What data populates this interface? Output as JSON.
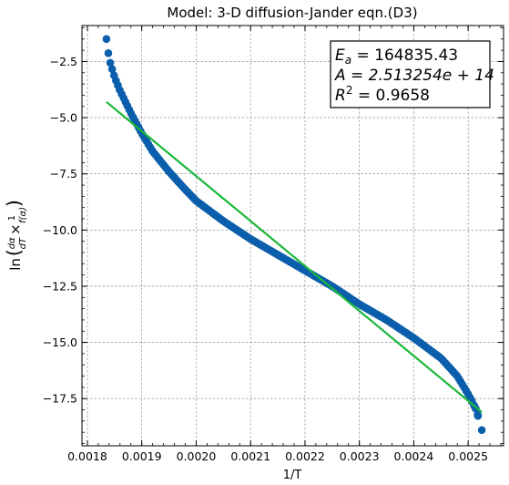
{
  "chart_data": {
    "type": "scatter",
    "title": "Model: 3-D diffusion-Jander eqn.(D3)",
    "xlabel": "1/T",
    "ylabel": "ln(dα/dT × 1/f(α))",
    "xlim": [
      0.00179,
      0.002565
    ],
    "ylim": [
      -19.6,
      -0.9
    ],
    "xticks": [
      0.0018,
      0.0019,
      0.002,
      0.0021,
      0.0022,
      0.0023,
      0.0024,
      0.0025
    ],
    "xtick_labels": [
      "0.0018",
      "0.0019",
      "0.0020",
      "0.0021",
      "0.0022",
      "0.0023",
      "0.0024",
      "0.0025"
    ],
    "yticks": [
      -2.5,
      -5.0,
      -7.5,
      -10.0,
      -12.5,
      -15.0,
      -17.5
    ],
    "ytick_labels": [
      "−2.5",
      "−5.0",
      "−7.5",
      "−10.0",
      "−12.5",
      "−15.0",
      "−17.5"
    ],
    "grid": true,
    "annotation": {
      "ea_label": "E",
      "ea_sub": "a",
      "ea_value": " = 164835.43",
      "a_line": "A = 2.513254e + 14",
      "r_label": "R",
      "r_sup": "2",
      "r_value": " = 0.9658",
      "placement": "top-right"
    },
    "series": [
      {
        "kind": "scatter",
        "color": "#0a5eab",
        "curve": [
          [
            0.001835,
            -1.5
          ],
          [
            0.00184,
            -2.4
          ],
          [
            0.00185,
            -3.2
          ],
          [
            0.00186,
            -3.8
          ],
          [
            0.00187,
            -4.3
          ],
          [
            0.00188,
            -4.8
          ],
          [
            0.0019,
            -5.7
          ],
          [
            0.00192,
            -6.5
          ],
          [
            0.00195,
            -7.4
          ],
          [
            0.00198,
            -8.2
          ],
          [
            0.002,
            -8.7
          ],
          [
            0.00205,
            -9.6
          ],
          [
            0.0021,
            -10.4
          ],
          [
            0.00215,
            -11.1
          ],
          [
            0.0022,
            -11.8
          ],
          [
            0.00225,
            -12.5
          ],
          [
            0.0023,
            -13.3
          ],
          [
            0.00235,
            -14.0
          ],
          [
            0.0024,
            -14.8
          ],
          [
            0.00245,
            -15.7
          ],
          [
            0.00248,
            -16.5
          ],
          [
            0.0025,
            -17.3
          ],
          [
            0.002515,
            -18.0
          ],
          [
            0.002525,
            -18.9
          ]
        ],
        "step": 3.5e-06
      },
      {
        "kind": "line",
        "color": "#1bb83a",
        "x": [
          0.001835,
          0.002525
        ],
        "y": [
          -4.3,
          -18.1
        ]
      }
    ]
  }
}
